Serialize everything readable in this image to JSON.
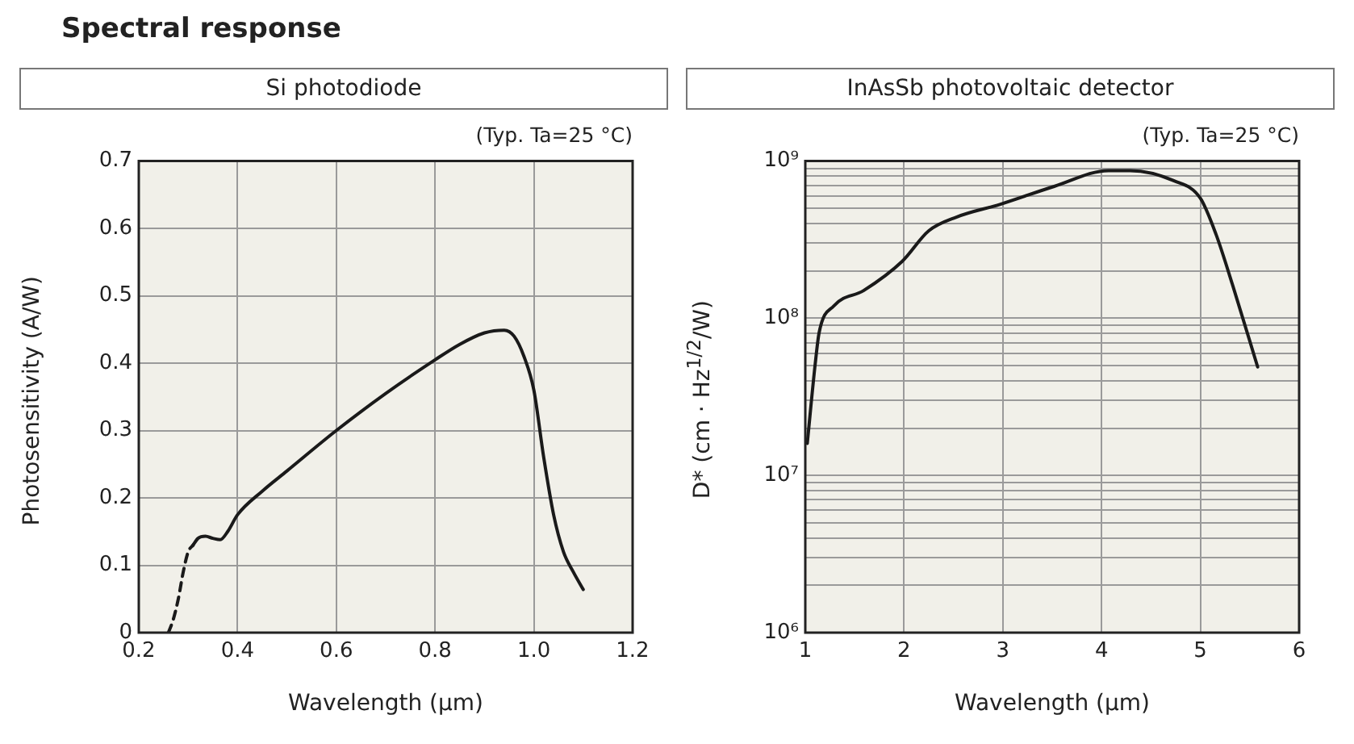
{
  "chart_data": [
    {
      "type": "line",
      "title": "Spectral response",
      "subtitle": "Si photodiode",
      "xlabel": "Wavelength (μm)",
      "ylabel": "Photosensitivity (A/W)",
      "annotations": [
        "(Typ. Ta=25 °C)"
      ],
      "xlim": [
        0.2,
        1.2
      ],
      "xticks": [
        0.2,
        0.4,
        0.6,
        0.8,
        {
          "value": 1,
          "label": "1.0"
        },
        {
          "value": 1.2,
          "label": "1.2"
        }
      ],
      "ylim": [
        0,
        0.7
      ],
      "yticks": [
        0,
        0.1,
        0.2,
        0.3,
        0.4,
        0.5,
        0.6,
        0.7
      ],
      "grid": true,
      "marker": "none",
      "series": [
        {
          "color": "#1a1a1a",
          "line_style": "dashed",
          "x": [
            0.26,
            0.27,
            0.28,
            0.29,
            0.3,
            0.31
          ],
          "values": [
            0,
            0.02,
            0.05,
            0.09,
            0.12,
            0.13
          ]
        },
        {
          "color": "#1a1a1a",
          "line_style": "solid",
          "x": [
            0.31,
            0.32,
            0.335,
            0.35,
            0.365,
            0.38,
            0.4,
            0.45,
            0.5,
            0.6,
            0.7,
            0.8,
            0.85,
            0.9,
            0.94,
            0.96,
            0.98,
            1.0,
            1.02,
            1.04,
            1.06,
            1.08,
            1.1
          ],
          "values": [
            0.13,
            0.14,
            0.143,
            0.14,
            0.138,
            0.15,
            0.175,
            0.21,
            0.24,
            0.3,
            0.355,
            0.405,
            0.428,
            0.445,
            0.449,
            0.44,
            0.41,
            0.36,
            0.26,
            0.175,
            0.12,
            0.09,
            0.064
          ]
        }
      ]
    },
    {
      "type": "line",
      "subtitle": "InAsSb photovoltaic detector",
      "xlabel": "Wavelength (μm)",
      "ylabel": "D* (cm · Hz$^{1/2}$/W)",
      "annotations": [
        "(Typ. Ta=25 °C)"
      ],
      "xlim": [
        1,
        6
      ],
      "xticks": [
        1,
        2,
        3,
        4,
        5,
        6
      ],
      "log": "y",
      "ylim": [
        1000000,
        1000000000
      ],
      "yticks": [
        {
          "value": 1000000,
          "label": "10⁶"
        },
        {
          "value": 2000000,
          "label": null
        },
        {
          "value": 3000000,
          "label": null
        },
        {
          "value": 4000000,
          "label": null
        },
        {
          "value": 5000000,
          "label": null
        },
        {
          "value": 6000000,
          "label": null
        },
        {
          "value": 7000000,
          "label": null
        },
        {
          "value": 8000000,
          "label": null
        },
        {
          "value": 9000000,
          "label": null
        },
        {
          "value": 10000000,
          "label": "10⁷"
        },
        {
          "value": 20000000,
          "label": null
        },
        {
          "value": 30000000,
          "label": null
        },
        {
          "value": 40000000,
          "label": null
        },
        {
          "value": 50000000,
          "label": null
        },
        {
          "value": 60000000,
          "label": null
        },
        {
          "value": 70000000,
          "label": null
        },
        {
          "value": 80000000,
          "label": null
        },
        {
          "value": 90000000,
          "label": null
        },
        {
          "value": 100000000,
          "label": "10⁸"
        },
        {
          "value": 200000000,
          "label": null
        },
        {
          "value": 300000000,
          "label": null
        },
        {
          "value": 400000000,
          "label": null
        },
        {
          "value": 500000000,
          "label": null
        },
        {
          "value": 600000000,
          "label": null
        },
        {
          "value": 700000000,
          "label": null
        },
        {
          "value": 800000000,
          "label": null
        },
        {
          "value": 900000000,
          "label": null
        },
        {
          "value": 1000000000,
          "label": "10⁹"
        }
      ],
      "grid": true,
      "marker": "none",
      "series": [
        {
          "color": "#1a1a1a",
          "line_style": "solid",
          "x": [
            1.02,
            1.1,
            1.14,
            1.29,
            1.59,
            1.98,
            2.25,
            2.53,
            2.97,
            3.52,
            4.07,
            4.29,
            4.73,
            5.0,
            5.16,
            5.33,
            5.58
          ],
          "values": [
            16000000,
            51000000,
            81000000,
            120000000,
            150000000,
            230000000,
            360000000,
            440000000,
            530000000,
            690000000,
            870000000,
            870000000,
            750000000,
            580000000,
            340000000,
            160000000,
            49000000
          ]
        }
      ]
    }
  ]
}
